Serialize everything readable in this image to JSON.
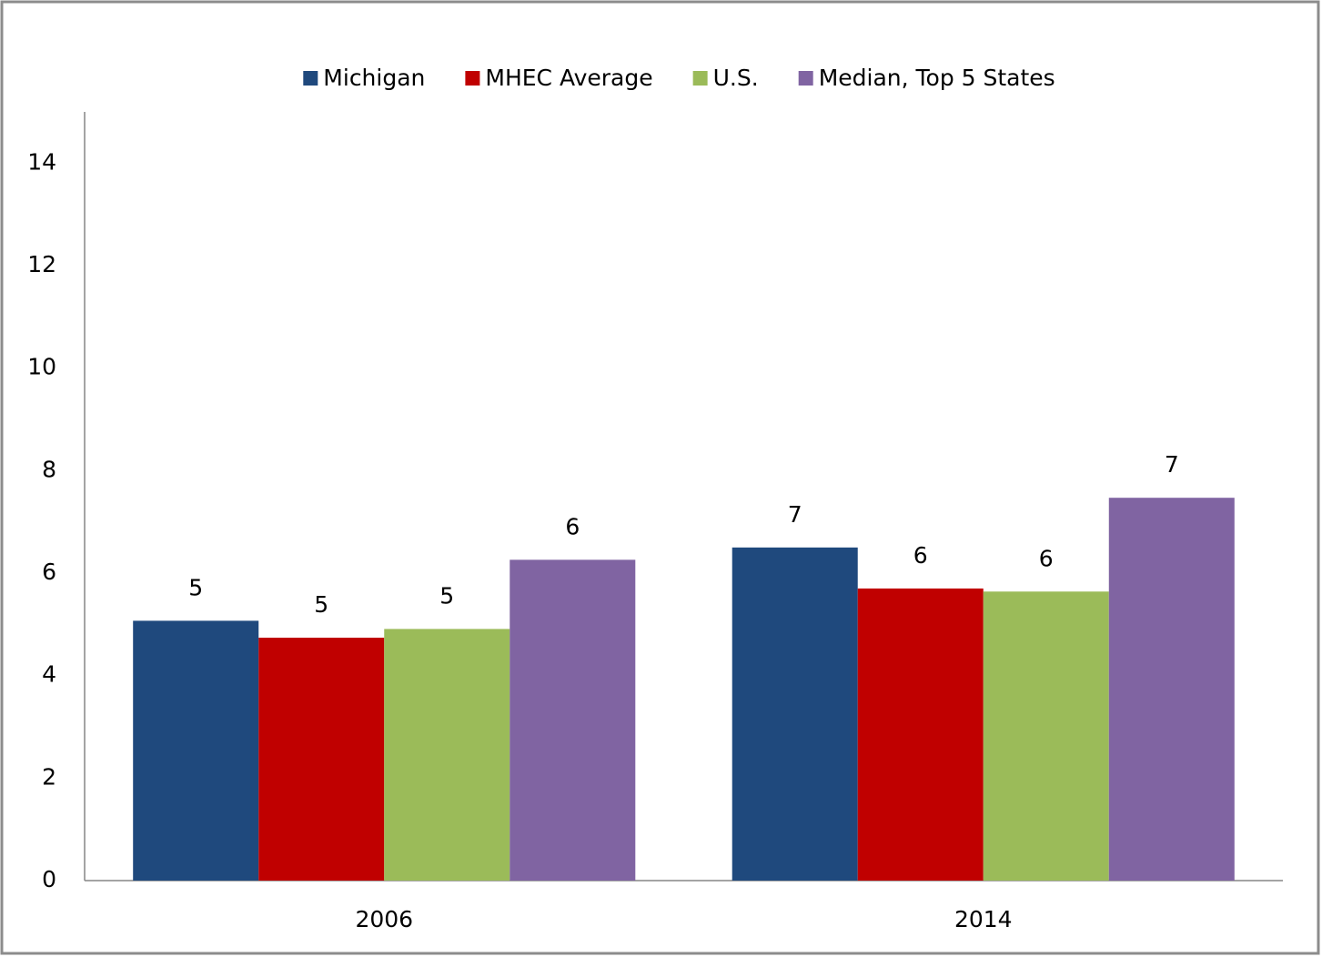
{
  "chart_data": {
    "type": "bar",
    "categories": [
      "2006",
      "2014"
    ],
    "series": [
      {
        "name": "Michigan",
        "color": "#1f497d",
        "values": [
          5.07,
          6.5
        ],
        "value_labels": [
          "5",
          "7"
        ]
      },
      {
        "name": "MHEC Average",
        "color": "#c00000",
        "values": [
          4.74,
          5.7
        ],
        "value_labels": [
          "5",
          "6"
        ]
      },
      {
        "name": "U.S.",
        "color": "#9bbb59",
        "values": [
          4.91,
          5.64
        ],
        "value_labels": [
          "5",
          "6"
        ]
      },
      {
        "name": "Median, Top 5 States",
        "color": "#8064a2",
        "values": [
          6.26,
          7.47
        ],
        "value_labels": [
          "6",
          "7"
        ]
      }
    ],
    "ylim": [
      0,
      15
    ],
    "yticks": [
      0,
      2,
      4,
      6,
      8,
      10,
      12,
      14
    ],
    "grid": false,
    "legend": "top"
  }
}
